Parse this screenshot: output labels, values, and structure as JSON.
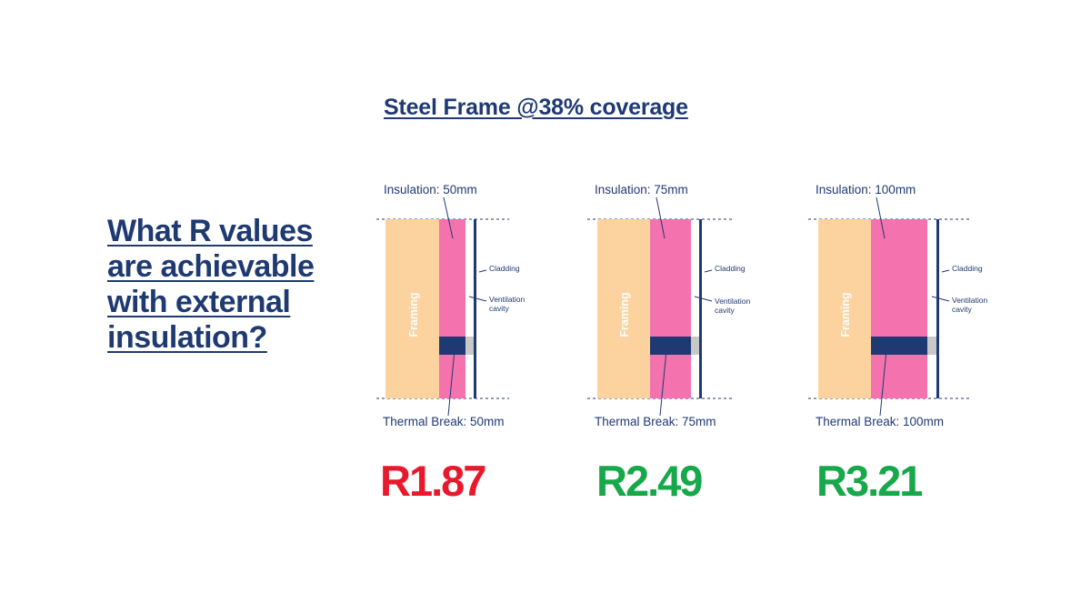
{
  "title": "Steel Frame @38% coverage",
  "question": "What R values are achievable with external insulation?",
  "colors": {
    "navy": "#1f3a72",
    "framing": "#fcd29f",
    "insulation": "#f472ae",
    "thermal_break": "#1f3a72",
    "gap": "#c8c8c8",
    "red": "#e8192c",
    "green": "#17a84a"
  },
  "panels": [
    {
      "insulation_label": "Insulation: 50mm",
      "framing_label": "Framing",
      "cladding_label": "Cladding",
      "ventilation_label_line1": "Ventilation",
      "ventilation_label_line2": "cavity",
      "thermal_break_label": "Thermal Break: 50mm",
      "r_value": "R1.87",
      "r_color": "red"
    },
    {
      "insulation_label": "Insulation: 75mm",
      "framing_label": "Framing",
      "cladding_label": "Cladding",
      "ventilation_label_line1": "Ventilation",
      "ventilation_label_line2": "cavity",
      "thermal_break_label": "Thermal Break: 75mm",
      "r_value": "R2.49",
      "r_color": "green"
    },
    {
      "insulation_label": "Insulation: 100mm",
      "framing_label": "Framing",
      "cladding_label": "Cladding",
      "ventilation_label_line1": "Ventilation",
      "ventilation_label_line2": "cavity",
      "thermal_break_label": "Thermal Break: 100mm",
      "r_value": "R3.21",
      "r_color": "green"
    }
  ]
}
